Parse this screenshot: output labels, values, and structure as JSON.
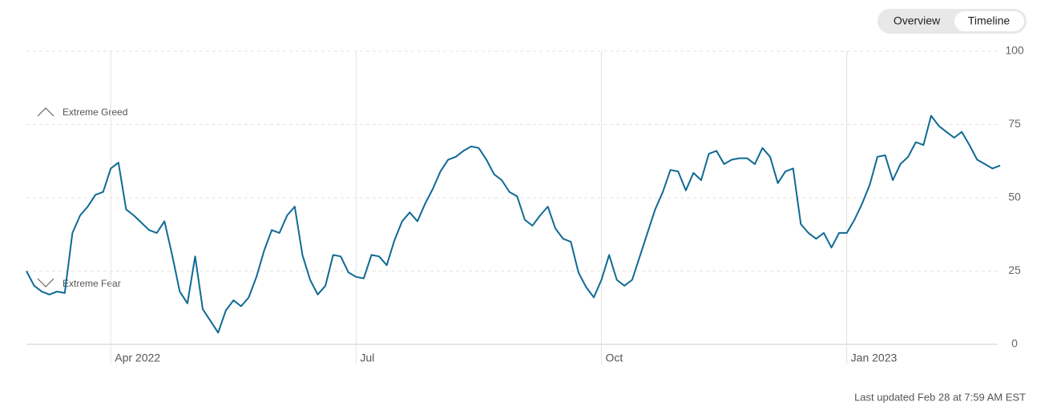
{
  "chart_data": {
    "type": "line",
    "tabs": [
      "Overview",
      "Timeline"
    ],
    "annotations": [
      "Extreme Greed",
      "Extreme Fear"
    ],
    "footer": "Last updated Feb 28 at 7:59 AM EST",
    "color": "#0f6a94",
    "grid": true,
    "ylim": [
      0,
      100
    ],
    "yticks": [
      0,
      25,
      50,
      75,
      100
    ],
    "categories": [
      null,
      null,
      null,
      null,
      null,
      null,
      null,
      null,
      null,
      null,
      null,
      "Apr 2022",
      null,
      null,
      null,
      null,
      null,
      null,
      null,
      null,
      null,
      null,
      null,
      null,
      null,
      null,
      null,
      null,
      null,
      null,
      null,
      null,
      null,
      null,
      null,
      null,
      null,
      null,
      null,
      null,
      null,
      null,
      null,
      "Jul",
      null,
      null,
      null,
      null,
      null,
      null,
      null,
      null,
      null,
      null,
      null,
      null,
      null,
      null,
      null,
      null,
      null,
      null,
      null,
      null,
      null,
      null,
      null,
      null,
      null,
      null,
      null,
      null,
      null,
      null,
      null,
      "Oct",
      null,
      null,
      null,
      null,
      null,
      null,
      null,
      null,
      null,
      null,
      null,
      null,
      null,
      null,
      null,
      null,
      null,
      null,
      null,
      null,
      null,
      null,
      null,
      null,
      null,
      null,
      null,
      null,
      null,
      null,
      null,
      "Jan 2023",
      null,
      null,
      null,
      null,
      null,
      null,
      null,
      null,
      null,
      null,
      null,
      null,
      null,
      null,
      null,
      null,
      null,
      null,
      null,
      null
    ],
    "values": [
      25,
      20,
      18,
      17,
      18,
      17.5,
      38,
      44,
      47,
      51,
      52,
      60,
      62,
      46,
      44,
      41.5,
      39,
      38,
      42,
      30.5,
      18,
      14,
      30,
      12,
      8,
      4,
      11.5,
      15,
      13,
      16,
      23,
      32,
      39,
      38,
      44,
      47,
      30.5,
      22,
      17,
      20,
      30.5,
      30,
      24.5,
      23,
      22.5,
      30.5,
      30,
      27,
      35.5,
      42,
      45,
      42,
      48,
      53,
      59,
      63,
      64,
      66,
      67.5,
      67,
      63,
      58,
      56,
      52,
      50.5,
      42.5,
      40.5,
      44,
      47,
      39.5,
      36,
      35,
      24.5,
      19.5,
      16,
      22,
      30.5,
      22,
      20,
      22,
      30,
      38,
      46,
      52,
      59.5,
      59,
      52.5,
      58.5,
      56,
      65,
      66,
      61.5,
      63,
      63.5,
      63.5,
      61.5,
      67,
      64,
      55,
      59,
      60,
      41,
      38,
      36,
      38,
      33,
      38,
      38,
      42.5,
      48,
      54.5,
      64,
      64.5,
      56,
      61.5,
      64,
      69,
      68,
      78,
      74.5,
      72.5,
      70.5,
      72.5,
      68,
      63,
      61.5,
      60,
      61
    ]
  }
}
